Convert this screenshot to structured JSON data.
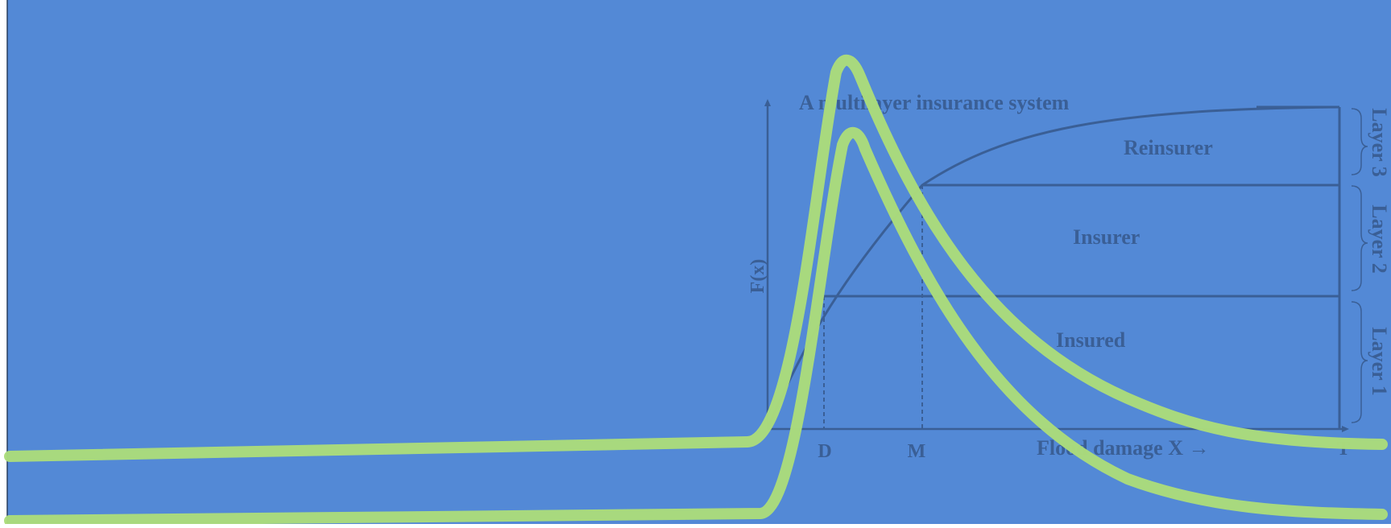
{
  "colors": {
    "background": "#5389d6",
    "diagram_ink": "#3a5f96",
    "curve": "#abdc7b"
  },
  "diagram": {
    "title": "A multilayer insurance system",
    "y_axis_label": "F(x)",
    "x_axis_label": "Flood damage X →",
    "ticks": {
      "d": "D",
      "m": "M",
      "t": "T"
    },
    "regions": {
      "reinsurer": "Reinsurer",
      "insurer": "Insurer",
      "insured": "Insured"
    },
    "layers": {
      "layer3": "Layer 3",
      "layer2": "Layer 2",
      "layer1": "Layer 1"
    }
  }
}
